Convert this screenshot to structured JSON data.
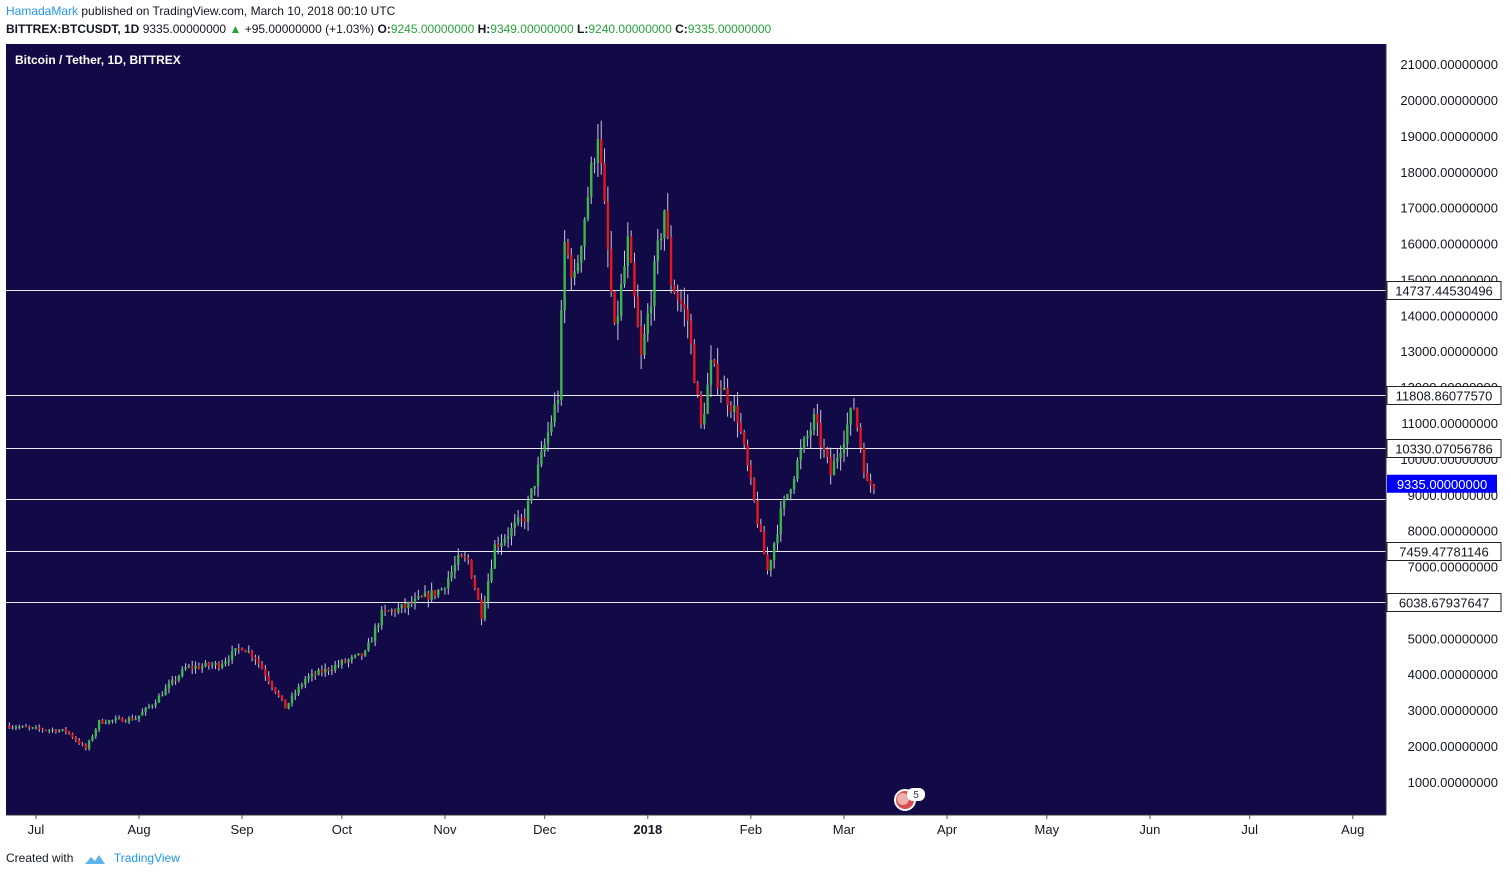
{
  "header": {
    "author": "HamadaMark",
    "published_text": "published on TradingView.com, March 10, 2018 00:10 UTC",
    "symbol": "BITTREX:BTCUSDT, 1D",
    "last_price": "9335.00000000",
    "change_arrow": "▲",
    "change": "+95.00000000 (+1.03%)",
    "o_label": "O:",
    "o_value": "9245.00000000",
    "h_label": "H:",
    "h_value": "9349.00000000",
    "l_label": "L:",
    "l_value": "9240.00000000",
    "c_label": "C:",
    "c_value": "9335.00000000"
  },
  "footer": {
    "created_with": "Created with",
    "brand": "TradingView"
  },
  "event_badge": "5",
  "colors": {
    "background": "#120a46",
    "up": "#3cb54a",
    "down": "#e5171c",
    "grid_line": "#ffffff",
    "price_label_bg": "#0000ff"
  },
  "chart_data": {
    "type": "candlestick",
    "title": "Bitcoin / Tether, 1D, BITTREX",
    "xlabel": "",
    "ylabel": "",
    "ylim": [
      0,
      21000
    ],
    "y_ticks": [
      "1000.00000000",
      "2000.00000000",
      "3000.00000000",
      "4000.00000000",
      "5000.00000000",
      "6000.00000000",
      "7000.00000000",
      "8000.00000000",
      "9000.00000000",
      "10000.00000000",
      "11000.00000000",
      "12000.00000000",
      "13000.00000000",
      "14000.00000000",
      "15000.00000000",
      "16000.00000000",
      "17000.00000000",
      "18000.00000000",
      "19000.00000000",
      "20000.00000000",
      "21000.00000000"
    ],
    "x_ticks": [
      "Jul",
      "Aug",
      "Sep",
      "Oct",
      "Nov",
      "Dec",
      "2018",
      "Feb",
      "Mar",
      "Apr",
      "May",
      "Jun",
      "Jul",
      "Aug"
    ],
    "x_range": [
      "2017-06-22",
      "2018-08-11"
    ],
    "horizontal_levels": [
      "14737.44530496",
      "11808.86077570",
      "10330.07056786",
      "7459.47781146",
      "6038.67937647"
    ],
    "unlabeled_level": 8900,
    "current_price": "9335.00000000",
    "price_keypoints": [
      [
        "2017-06-22",
        2600
      ],
      [
        "2017-07-01",
        2500
      ],
      [
        "2017-07-10",
        2450
      ],
      [
        "2017-07-16",
        1950
      ],
      [
        "2017-07-20",
        2700
      ],
      [
        "2017-07-31",
        2800
      ],
      [
        "2017-08-05",
        3200
      ],
      [
        "2017-08-15",
        4200
      ],
      [
        "2017-08-25",
        4300
      ],
      [
        "2017-09-01",
        4800
      ],
      [
        "2017-09-05",
        4500
      ],
      [
        "2017-09-14",
        3100
      ],
      [
        "2017-09-20",
        3900
      ],
      [
        "2017-09-30",
        4300
      ],
      [
        "2017-10-08",
        4600
      ],
      [
        "2017-10-13",
        5700
      ],
      [
        "2017-10-20",
        5900
      ],
      [
        "2017-10-31",
        6400
      ],
      [
        "2017-11-05",
        7200
      ],
      [
        "2017-11-08",
        7200
      ],
      [
        "2017-11-12",
        5700
      ],
      [
        "2017-11-16",
        7600
      ],
      [
        "2017-11-25",
        8400
      ],
      [
        "2017-12-01",
        10400
      ],
      [
        "2017-12-05",
        11800
      ],
      [
        "2017-12-07",
        16000
      ],
      [
        "2017-12-10",
        15000
      ],
      [
        "2017-12-17",
        19200
      ],
      [
        "2017-12-22",
        13500
      ],
      [
        "2017-12-26",
        16000
      ],
      [
        "2017-12-30",
        12800
      ],
      [
        "2018-01-06",
        17000
      ],
      [
        "2018-01-08",
        15000
      ],
      [
        "2018-01-13",
        13900
      ],
      [
        "2018-01-17",
        10900
      ],
      [
        "2018-01-20",
        12600
      ],
      [
        "2018-01-28",
        11200
      ],
      [
        "2018-02-02",
        8800
      ],
      [
        "2018-02-06",
        6900
      ],
      [
        "2018-02-10",
        8500
      ],
      [
        "2018-02-16",
        10200
      ],
      [
        "2018-02-20",
        11100
      ],
      [
        "2018-02-25",
        9600
      ],
      [
        "2018-03-04",
        11500
      ],
      [
        "2018-03-08",
        9300
      ],
      [
        "2018-03-10",
        9335
      ]
    ]
  }
}
